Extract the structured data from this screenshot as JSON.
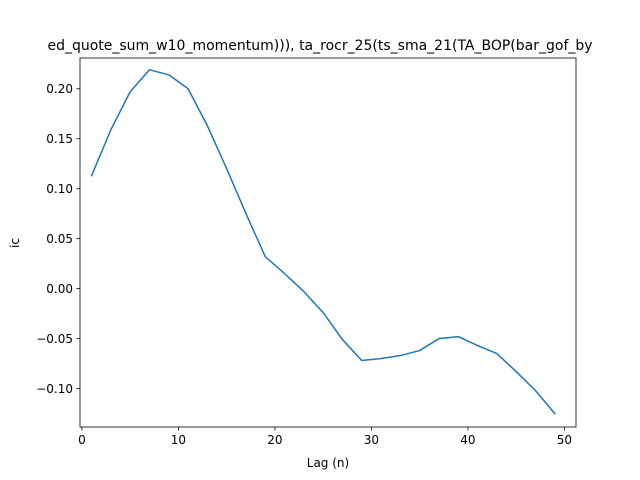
{
  "chart_data": {
    "type": "line",
    "title": "ed_quote_sum_w10_momentum))), ta_rocr_25(ts_sma_21(TA_BOP(bar_gof_by",
    "xlabel": "Lag (n)",
    "ylabel": "ic",
    "xlim": [
      -0.2,
      51.2
    ],
    "ylim": [
      -0.1385,
      0.2308
    ],
    "xticks": [
      0,
      10,
      20,
      30,
      40,
      50
    ],
    "yticks": [
      -0.1,
      -0.05,
      0.0,
      0.05,
      0.1,
      0.15,
      0.2
    ],
    "xtick_labels": [
      "0",
      "10",
      "20",
      "30",
      "40",
      "50"
    ],
    "ytick_labels": [
      "−0.10",
      "−0.05",
      "0.00",
      "0.05",
      "0.10",
      "0.15",
      "0.20"
    ],
    "grid": false,
    "legend": "none",
    "series": [
      {
        "color": "#1f77b4",
        "x": [
          1,
          3,
          5,
          7,
          9,
          11,
          13,
          15,
          17,
          19,
          21,
          23,
          25,
          27,
          29,
          31,
          33,
          35,
          37,
          39,
          41,
          43,
          45,
          47,
          49
        ],
        "y": [
          0.113,
          0.159,
          0.197,
          0.219,
          0.214,
          0.2,
          0.163,
          0.12,
          0.075,
          0.032,
          0.015,
          -0.003,
          -0.024,
          -0.051,
          -0.072,
          -0.07,
          -0.067,
          -0.062,
          -0.05,
          -0.048,
          -0.057,
          -0.065,
          -0.083,
          -0.102,
          -0.125
        ]
      }
    ]
  }
}
